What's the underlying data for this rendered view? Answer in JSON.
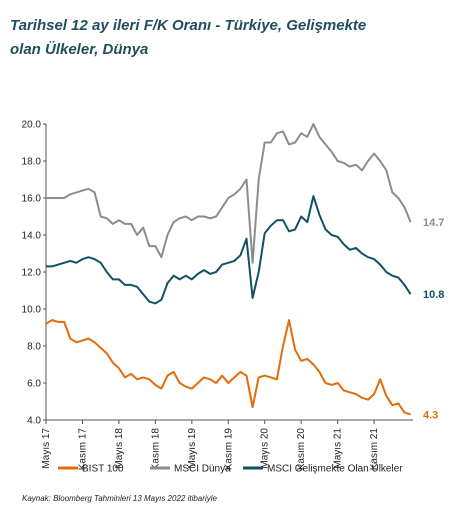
{
  "title_line1": "Tarihsel 12 ay ileri F/K Oranı -  Türkiye, Gelişmekte",
  "title_line2": "olan Ülkeler, Dünya",
  "source": "Kaynak: Bloomberg Tahminleri 13 Mayıs 2022 itibariyle",
  "chart_data": {
    "type": "line",
    "title": "Tarihsel 12 ay ileri F/K Oranı -  Türkiye, Gelişmekte olan Ülkeler, Dünya",
    "xlabel": "",
    "ylabel": "",
    "ylim": [
      4.0,
      20.0
    ],
    "yticks": [
      "4.0",
      "6.0",
      "8.0",
      "10.0",
      "12.0",
      "14.0",
      "16.0",
      "18.0",
      "20.0"
    ],
    "x_ticks": [
      "Mayıs 17",
      "Kasım 17",
      "Mayıs 18",
      "Kasım 18",
      "Mayıs 19",
      "Kasım 19",
      "Mayıs 20",
      "Kasım 20",
      "Mayıs 21",
      "Kasım 21"
    ],
    "x": [
      "2017-05",
      "2017-06",
      "2017-07",
      "2017-08",
      "2017-09",
      "2017-10",
      "2017-11",
      "2017-12",
      "2018-01",
      "2018-02",
      "2018-03",
      "2018-04",
      "2018-05",
      "2018-06",
      "2018-07",
      "2018-08",
      "2018-09",
      "2018-10",
      "2018-11",
      "2018-12",
      "2019-01",
      "2019-02",
      "2019-03",
      "2019-04",
      "2019-05",
      "2019-06",
      "2019-07",
      "2019-08",
      "2019-09",
      "2019-10",
      "2019-11",
      "2019-12",
      "2020-01",
      "2020-02",
      "2020-03",
      "2020-04",
      "2020-05",
      "2020-06",
      "2020-07",
      "2020-08",
      "2020-09",
      "2020-10",
      "2020-11",
      "2020-12",
      "2021-01",
      "2021-02",
      "2021-03",
      "2021-04",
      "2021-05",
      "2021-06",
      "2021-07",
      "2021-08",
      "2021-09",
      "2021-10",
      "2021-11",
      "2021-12",
      "2022-01",
      "2022-02",
      "2022-03",
      "2022-04",
      "2022-05"
    ],
    "series": [
      {
        "name": "BIST 100",
        "color": "#e36c0a",
        "values": [
          9.2,
          9.4,
          9.3,
          9.3,
          8.4,
          8.2,
          8.3,
          8.4,
          8.2,
          7.9,
          7.6,
          7.1,
          6.8,
          6.3,
          6.5,
          6.2,
          6.3,
          6.2,
          5.9,
          5.7,
          6.4,
          6.6,
          6.0,
          5.8,
          5.7,
          6.0,
          6.3,
          6.2,
          6.0,
          6.4,
          6.0,
          6.3,
          6.6,
          6.4,
          4.7,
          6.3,
          6.4,
          6.3,
          6.2,
          8.0,
          9.4,
          7.8,
          7.2,
          7.3,
          7.0,
          6.6,
          6.0,
          5.9,
          6.0,
          5.6,
          5.5,
          5.4,
          5.2,
          5.1,
          5.4,
          6.2,
          5.3,
          4.8,
          4.9,
          4.4,
          4.3
        ],
        "end_label": "4.3"
      },
      {
        "name": "MSCI Dünya",
        "color": "#8c8c8c",
        "values": [
          16.0,
          16.0,
          16.0,
          16.0,
          16.2,
          16.3,
          16.4,
          16.5,
          16.3,
          15.0,
          14.9,
          14.6,
          14.8,
          14.6,
          14.6,
          14.0,
          14.4,
          13.4,
          13.4,
          12.8,
          14.0,
          14.7,
          14.9,
          15.0,
          14.8,
          15.0,
          15.0,
          14.9,
          15.0,
          15.5,
          16.0,
          16.2,
          16.5,
          17.0,
          12.5,
          17.0,
          19.0,
          19.0,
          19.5,
          19.6,
          18.9,
          19.0,
          19.5,
          19.3,
          20.0,
          19.3,
          18.9,
          18.5,
          18.0,
          17.9,
          17.7,
          17.8,
          17.5,
          18.0,
          18.4,
          18.0,
          17.5,
          16.3,
          16.0,
          15.5,
          14.7
        ],
        "end_label": "14.7"
      },
      {
        "name": "MSCI Gelişmekte Olan Ülkeler",
        "color": "#0f5266",
        "values": [
          12.3,
          12.3,
          12.4,
          12.5,
          12.6,
          12.5,
          12.7,
          12.8,
          12.7,
          12.5,
          12.0,
          11.6,
          11.6,
          11.3,
          11.3,
          11.2,
          10.8,
          10.4,
          10.3,
          10.5,
          11.4,
          11.8,
          11.6,
          11.8,
          11.6,
          11.9,
          12.1,
          11.9,
          12.0,
          12.4,
          12.5,
          12.6,
          12.9,
          13.8,
          10.6,
          12.0,
          14.1,
          14.5,
          14.8,
          14.8,
          14.2,
          14.3,
          15.0,
          14.7,
          16.1,
          15.1,
          14.3,
          14.0,
          13.9,
          13.5,
          13.2,
          13.3,
          13.0,
          12.8,
          12.7,
          12.4,
          12.0,
          11.8,
          11.7,
          11.3,
          10.8
        ],
        "end_label": "10.8"
      }
    ],
    "legend_position": "bottom",
    "grid": false
  }
}
